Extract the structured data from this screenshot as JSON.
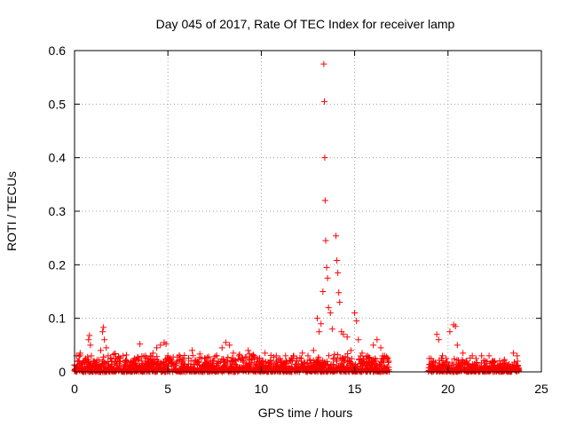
{
  "chart_data": {
    "type": "scatter",
    "title": "Day 045 of 2017, Rate Of TEC Index for receiver lamp",
    "xlabel": "GPS time / hours",
    "ylabel": "ROTI / TECUs",
    "xlim": [
      0,
      25
    ],
    "ylim": [
      0,
      0.6
    ],
    "xticks": [
      0,
      5,
      10,
      15,
      20,
      25
    ],
    "yticks": [
      0,
      0.1,
      0.2,
      0.3,
      0.4,
      0.5,
      0.6
    ],
    "xtick_labels": [
      "0",
      "5",
      "10",
      "15",
      "20",
      "25"
    ],
    "ytick_labels": [
      "0",
      "0.1",
      "0.2",
      "0.3",
      "0.4",
      "0.5",
      "0.6"
    ],
    "grid": true,
    "marker": "+",
    "marker_color": "#ff0000",
    "series": [
      {
        "name": "ROTI",
        "points": [
          [
            0.0,
            0.012
          ],
          [
            0.1,
            0.03
          ],
          [
            0.2,
            0.02
          ],
          [
            0.3,
            0.035
          ],
          [
            0.45,
            0.018
          ],
          [
            0.6,
            0.025
          ],
          [
            0.75,
            0.06
          ],
          [
            0.8,
            0.068
          ],
          [
            0.85,
            0.05
          ],
          [
            0.9,
            0.03
          ],
          [
            1.0,
            0.02
          ],
          [
            1.2,
            0.015
          ],
          [
            1.4,
            0.04
          ],
          [
            1.5,
            0.075
          ],
          [
            1.55,
            0.083
          ],
          [
            1.6,
            0.06
          ],
          [
            1.7,
            0.045
          ],
          [
            1.8,
            0.03
          ],
          [
            2.0,
            0.02
          ],
          [
            2.2,
            0.025
          ],
          [
            2.4,
            0.015
          ],
          [
            2.6,
            0.03
          ],
          [
            2.8,
            0.02
          ],
          [
            3.0,
            0.018
          ],
          [
            3.2,
            0.025
          ],
          [
            3.5,
            0.052
          ],
          [
            3.6,
            0.02
          ],
          [
            3.8,
            0.03
          ],
          [
            4.0,
            0.018
          ],
          [
            4.2,
            0.035
          ],
          [
            4.4,
            0.045
          ],
          [
            4.6,
            0.05
          ],
          [
            4.8,
            0.055
          ],
          [
            4.9,
            0.052
          ],
          [
            5.0,
            0.03
          ],
          [
            5.2,
            0.015
          ],
          [
            5.5,
            0.02
          ],
          [
            5.8,
            0.025
          ],
          [
            6.1,
            0.015
          ],
          [
            6.3,
            0.04
          ],
          [
            6.5,
            0.02
          ],
          [
            6.8,
            0.025
          ],
          [
            7.0,
            0.015
          ],
          [
            7.3,
            0.02
          ],
          [
            7.6,
            0.03
          ],
          [
            7.9,
            0.045
          ],
          [
            8.1,
            0.055
          ],
          [
            8.3,
            0.05
          ],
          [
            8.5,
            0.035
          ],
          [
            8.8,
            0.03
          ],
          [
            9.0,
            0.025
          ],
          [
            9.3,
            0.04
          ],
          [
            9.6,
            0.03
          ],
          [
            9.9,
            0.025
          ],
          [
            10.2,
            0.035
          ],
          [
            10.5,
            0.02
          ],
          [
            10.8,
            0.03
          ],
          [
            11.0,
            0.025
          ],
          [
            11.3,
            0.03
          ],
          [
            11.6,
            0.02
          ],
          [
            11.9,
            0.025
          ],
          [
            12.2,
            0.035
          ],
          [
            12.5,
            0.03
          ],
          [
            12.8,
            0.04
          ],
          [
            13.0,
            0.1
          ],
          [
            13.1,
            0.075
          ],
          [
            13.2,
            0.09
          ],
          [
            13.3,
            0.15
          ],
          [
            13.35,
            0.575
          ],
          [
            13.38,
            0.505
          ],
          [
            13.4,
            0.4
          ],
          [
            13.42,
            0.32
          ],
          [
            13.45,
            0.245
          ],
          [
            13.5,
            0.195
          ],
          [
            13.55,
            0.175
          ],
          [
            13.6,
            0.12
          ],
          [
            13.7,
            0.11
          ],
          [
            13.8,
            0.08
          ],
          [
            14.0,
            0.254
          ],
          [
            14.05,
            0.208
          ],
          [
            14.1,
            0.185
          ],
          [
            14.15,
            0.148
          ],
          [
            14.2,
            0.13
          ],
          [
            14.3,
            0.075
          ],
          [
            14.4,
            0.07
          ],
          [
            14.6,
            0.065
          ],
          [
            14.8,
            0.04
          ],
          [
            15.0,
            0.11
          ],
          [
            15.1,
            0.095
          ],
          [
            15.2,
            0.06
          ],
          [
            15.4,
            0.035
          ],
          [
            15.7,
            0.03
          ],
          [
            16.0,
            0.05
          ],
          [
            16.2,
            0.06
          ],
          [
            16.4,
            0.045
          ],
          [
            16.6,
            0.03
          ],
          [
            16.8,
            0.02
          ],
          [
            19.0,
            0.025
          ],
          [
            19.2,
            0.02
          ],
          [
            19.4,
            0.07
          ],
          [
            19.5,
            0.06
          ],
          [
            19.7,
            0.03
          ],
          [
            19.9,
            0.025
          ],
          [
            20.1,
            0.075
          ],
          [
            20.3,
            0.088
          ],
          [
            20.4,
            0.085
          ],
          [
            20.5,
            0.05
          ],
          [
            20.8,
            0.035
          ],
          [
            21.0,
            0.02
          ],
          [
            21.3,
            0.03
          ],
          [
            21.5,
            0.025
          ],
          [
            21.8,
            0.03
          ],
          [
            22.0,
            0.02
          ],
          [
            22.2,
            0.03
          ],
          [
            22.5,
            0.02
          ],
          [
            22.8,
            0.015
          ],
          [
            23.0,
            0.02
          ],
          [
            23.2,
            0.012
          ],
          [
            23.5,
            0.035
          ],
          [
            23.7,
            0.03
          ]
        ]
      }
    ],
    "bands": [
      {
        "x": [
          0.0,
          16.85
        ],
        "low": 0.0,
        "high": 0.026
      },
      {
        "x": [
          18.95,
          23.8
        ],
        "low": 0.0,
        "high": 0.02
      }
    ]
  }
}
